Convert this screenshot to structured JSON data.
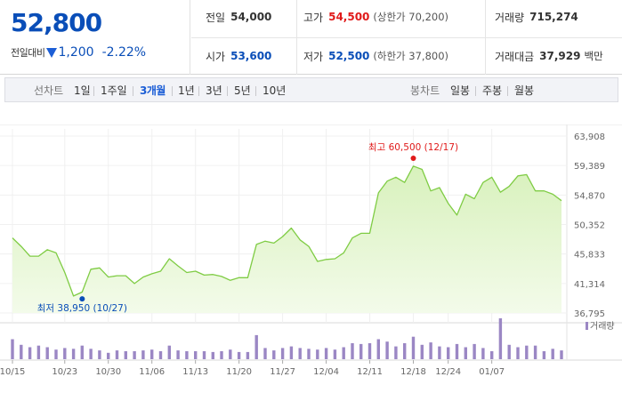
{
  "header": {
    "price": "52,800",
    "change_label": "전일대비",
    "change_value": "1,200",
    "change_pct": "-2.22%",
    "direction_icon": "down-triangle-icon",
    "summary": {
      "prev_close": {
        "label": "전일",
        "value": "54,000"
      },
      "high": {
        "label": "고가",
        "value": "54,500",
        "sub": "(상한가 70,200)"
      },
      "volume": {
        "label": "거래량",
        "value": "715,274"
      },
      "open": {
        "label": "시가",
        "value": "53,600"
      },
      "low": {
        "label": "저가",
        "value": "52,500",
        "sub": "(하한가 37,800)"
      },
      "amount": {
        "label": "거래대금",
        "value": "37,929",
        "unit": "백만"
      }
    }
  },
  "toolbar": {
    "line_chart_label": "선차트",
    "periods": [
      "1일",
      "1주일",
      "3개월",
      "1년",
      "3년",
      "5년",
      "10년"
    ],
    "active_period": "3개월",
    "candle_chart_label": "봉차트",
    "candle_periods": [
      "일봉",
      "주봉",
      "월봉"
    ]
  },
  "colors": {
    "up": "#e01a1a",
    "down": "#0a4eb8",
    "line": "#7fcc44",
    "area": "#dff3c6",
    "volume_bar": "#9b87c4"
  },
  "chart_data": [
    {
      "type": "area",
      "y_ticks": [
        "63,908",
        "59,389",
        "54,870",
        "50,352",
        "45,833",
        "41,314",
        "36,795"
      ],
      "ylim": [
        36795,
        63908
      ],
      "x_ticks": [
        {
          "index": 0,
          "label": "10/15"
        },
        {
          "index": 6,
          "label": "10/23"
        },
        {
          "index": 11,
          "label": "10/30"
        },
        {
          "index": 16,
          "label": "11/06"
        },
        {
          "index": 21,
          "label": "11/13"
        },
        {
          "index": 26,
          "label": "11/20"
        },
        {
          "index": 31,
          "label": "11/27"
        },
        {
          "index": 36,
          "label": "12/04"
        },
        {
          "index": 41,
          "label": "12/11"
        },
        {
          "index": 46,
          "label": "12/18"
        },
        {
          "index": 50,
          "label": "12/24"
        },
        {
          "index": 55,
          "label": "01/07"
        }
      ],
      "grid": true,
      "series": [
        {
          "values": [
            48300,
            47000,
            45500,
            45500,
            46500,
            46000,
            43000,
            39400,
            40000,
            43500,
            43700,
            42300,
            42500,
            42500,
            41300,
            42300,
            42800,
            43200,
            45100,
            44000,
            43000,
            43200,
            42600,
            42700,
            42400,
            41800,
            42200,
            42200,
            47300,
            47800,
            47500,
            48500,
            49800,
            48000,
            47000,
            44700,
            45000,
            45100,
            46000,
            48300,
            49000,
            49000,
            55200,
            57000,
            57600,
            56800,
            59300,
            58800,
            55500,
            56000,
            53600,
            51800,
            55000,
            54300,
            56800,
            57600,
            55300,
            56200,
            57800,
            58000,
            55500,
            55500,
            55000,
            54000
          ]
        }
      ],
      "annotations": [
        {
          "label": "최고 60,500 (12/17)",
          "index": 46,
          "value": 60500,
          "kind": "high"
        },
        {
          "label": "최저 38,950 (10/27)",
          "index": 8,
          "value": 38950,
          "kind": "low"
        }
      ]
    },
    {
      "type": "bar",
      "legend": "거래량",
      "legend_position": "top-right",
      "volumes": [
        2.5,
        1.8,
        1.5,
        1.7,
        1.5,
        1.2,
        1.4,
        1.3,
        1.7,
        1.3,
        1.1,
        0.8,
        1.1,
        1.0,
        1.0,
        1.1,
        1.2,
        1.0,
        1.7,
        1.1,
        1.0,
        1.0,
        1.0,
        0.9,
        1.0,
        1.2,
        0.9,
        0.9,
        3.0,
        1.4,
        1.1,
        1.4,
        1.6,
        1.4,
        1.3,
        1.2,
        1.4,
        1.2,
        1.5,
        2.0,
        1.9,
        2.0,
        2.5,
        2.2,
        1.6,
        2.0,
        2.8,
        1.8,
        2.1,
        1.6,
        1.5,
        1.9,
        1.5,
        1.9,
        1.4,
        1.0,
        5.1,
        1.8,
        1.5,
        1.7,
        1.7,
        1.0,
        1.3,
        1.1
      ]
    }
  ]
}
